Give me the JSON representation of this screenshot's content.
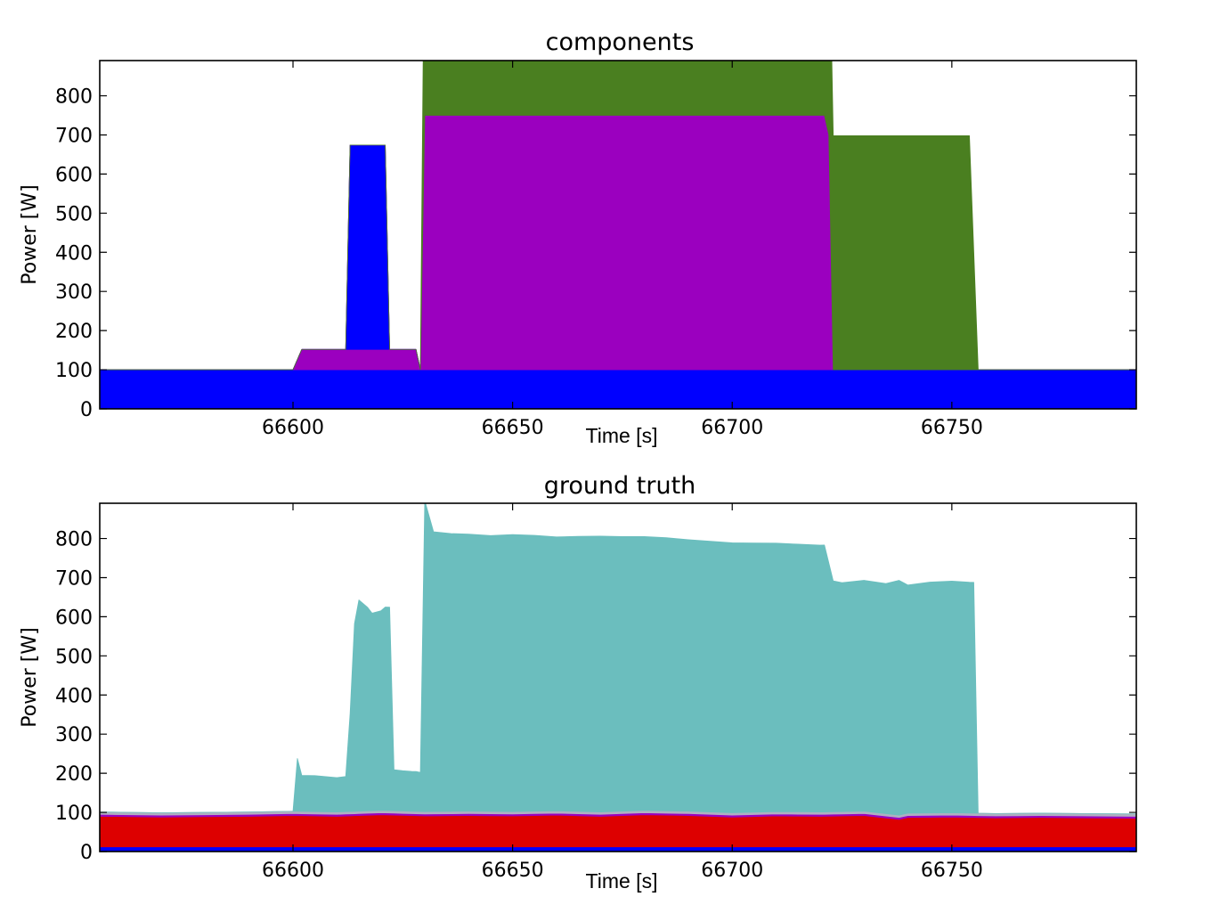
{
  "chart_data": [
    {
      "type": "area",
      "stacked": true,
      "title": "components",
      "xlabel": "Time [s]",
      "ylabel": "Power [W]",
      "xlim": [
        66556,
        66792
      ],
      "ylim": [
        0,
        890
      ],
      "xticks": [
        66600,
        66650,
        66700,
        66750
      ],
      "yticks": [
        0,
        100,
        200,
        300,
        400,
        500,
        600,
        700,
        800
      ],
      "grid": false,
      "series": [
        {
          "color": "#0000ff",
          "points": [
            [
              66556,
              100
            ],
            [
              66792,
              100
            ]
          ]
        },
        {
          "color": "#9b00bf",
          "points": [
            [
              66556,
              0
            ],
            [
              66600,
              0
            ],
            [
              66602,
              52
            ],
            [
              66628,
              52
            ],
            [
              66629,
              0
            ],
            [
              66792,
              0
            ]
          ]
        },
        {
          "color": "#0000ff",
          "points": [
            [
              66556,
              0
            ],
            [
              66612,
              0
            ],
            [
              66613,
              522
            ],
            [
              66621,
              522
            ],
            [
              66622,
              0
            ],
            [
              66792,
              0
            ]
          ]
        },
        {
          "color": "#9b00bf",
          "points": [
            [
              66556,
              0
            ],
            [
              66629,
              0
            ],
            [
              66630,
              650
            ],
            [
              66721,
              650
            ],
            [
              66722,
              600
            ],
            [
              66723,
              0
            ],
            [
              66792,
              0
            ]
          ]
        },
        {
          "color": "#4a7f20",
          "points": [
            [
              66556,
              0
            ],
            [
              66628,
              0
            ],
            [
              66629,
              0
            ],
            [
              66630,
              598
            ],
            [
              66754,
              598
            ],
            [
              66756,
              0
            ],
            [
              66792,
              0
            ]
          ]
        }
      ]
    },
    {
      "type": "area",
      "stacked": true,
      "title": "ground truth",
      "xlabel": "Time [s]",
      "ylabel": "Power [W]",
      "xlim": [
        66556,
        66792
      ],
      "ylim": [
        0,
        890
      ],
      "xticks": [
        66600,
        66650,
        66700,
        66750
      ],
      "yticks": [
        0,
        100,
        200,
        300,
        400,
        500,
        600,
        700,
        800
      ],
      "grid": false,
      "series": [
        {
          "color": "#0000ff",
          "points": [
            [
              66556,
              12
            ],
            [
              66792,
              12
            ]
          ]
        },
        {
          "color": "#dd0000",
          "points": [
            [
              66556,
              78
            ],
            [
              66570,
              76
            ],
            [
              66580,
              77
            ],
            [
              66590,
              78
            ],
            [
              66600,
              80
            ],
            [
              66610,
              78
            ],
            [
              66620,
              82
            ],
            [
              66630,
              79
            ],
            [
              66640,
              80
            ],
            [
              66650,
              79
            ],
            [
              66660,
              81
            ],
            [
              66670,
              78
            ],
            [
              66680,
              82
            ],
            [
              66690,
              80
            ],
            [
              66700,
              76
            ],
            [
              66710,
              79
            ],
            [
              66720,
              78
            ],
            [
              66730,
              80
            ],
            [
              66738,
              70
            ],
            [
              66740,
              75
            ],
            [
              66750,
              76
            ],
            [
              66760,
              74
            ],
            [
              66770,
              75
            ],
            [
              66780,
              74
            ],
            [
              66792,
              73
            ]
          ]
        },
        {
          "color": "#9b00bf",
          "points": [
            [
              66556,
              5
            ],
            [
              66792,
              5
            ]
          ]
        },
        {
          "color": "#b0b0c0",
          "points": [
            [
              66556,
              6
            ],
            [
              66792,
              6
            ]
          ]
        },
        {
          "color": "#6bbebe",
          "points": [
            [
              66556,
              0
            ],
            [
              66600,
              0
            ],
            [
              66601,
              135
            ],
            [
              66602,
              92
            ],
            [
              66605,
              92
            ],
            [
              66610,
              88
            ],
            [
              66612,
              90
            ],
            [
              66613,
              250
            ],
            [
              66614,
              480
            ],
            [
              66615,
              540
            ],
            [
              66617,
              520
            ],
            [
              66618,
              505
            ],
            [
              66620,
              510
            ],
            [
              66621,
              520
            ],
            [
              66622,
              520
            ],
            [
              66623,
              105
            ],
            [
              66625,
              103
            ],
            [
              66627,
              102
            ],
            [
              66628,
              102
            ],
            [
              66629,
              100
            ],
            [
              66630,
              795
            ],
            [
              66632,
              715
            ],
            [
              66636,
              710
            ],
            [
              66640,
              708
            ],
            [
              66645,
              705
            ],
            [
              66650,
              708
            ],
            [
              66655,
              705
            ],
            [
              66660,
              700
            ],
            [
              66665,
              703
            ],
            [
              66670,
              705
            ],
            [
              66675,
              702
            ],
            [
              66680,
              700
            ],
            [
              66685,
              698
            ],
            [
              66690,
              694
            ],
            [
              66695,
              692
            ],
            [
              66700,
              690
            ],
            [
              66705,
              688
            ],
            [
              66710,
              686
            ],
            [
              66715,
              684
            ],
            [
              66720,
              682
            ],
            [
              66721,
              682
            ],
            [
              66723,
              590
            ],
            [
              66725,
              585
            ],
            [
              66730,
              590
            ],
            [
              66735,
              588
            ],
            [
              66738,
              600
            ],
            [
              66740,
              583
            ],
            [
              66745,
              590
            ],
            [
              66750,
              592
            ],
            [
              66754,
              590
            ],
            [
              66755,
              590
            ],
            [
              66756,
              0
            ],
            [
              66792,
              0
            ]
          ]
        }
      ]
    }
  ]
}
